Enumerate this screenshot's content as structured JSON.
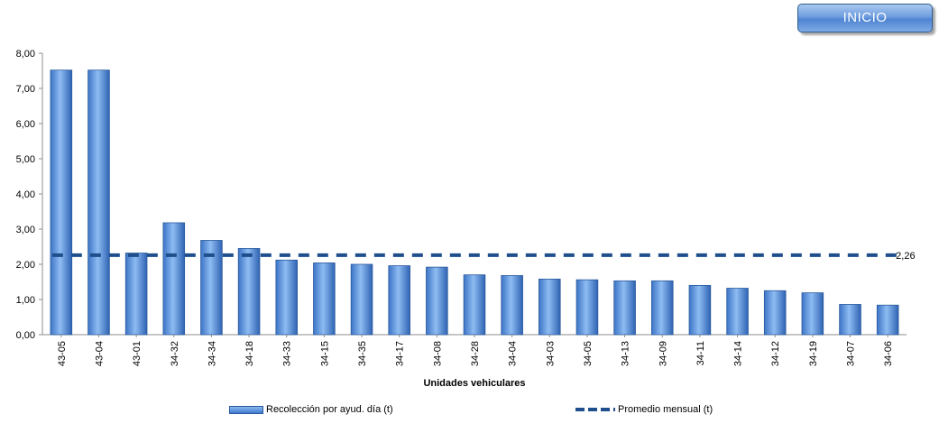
{
  "button": {
    "label": "INICIO"
  },
  "chart_data": {
    "type": "bar",
    "xlabel": "Unidades vehiculares",
    "ylabel": "",
    "ylim": [
      0,
      8
    ],
    "yticks": [
      "0,00",
      "1,00",
      "2,00",
      "3,00",
      "4,00",
      "5,00",
      "6,00",
      "7,00",
      "8,00"
    ],
    "categories": [
      "43-05",
      "43-04",
      "43-01",
      "34-32",
      "34-34",
      "34-18",
      "34-33",
      "34-15",
      "34-35",
      "34-17",
      "34-08",
      "34-28",
      "34-04",
      "34-03",
      "34-05",
      "34-13",
      "34-09",
      "34-11",
      "34-14",
      "34-12",
      "34-19",
      "34-07",
      "34-06"
    ],
    "series": [
      {
        "name": "Recolección por ayud. día (t)",
        "type": "bar",
        "color": "#4a86d8",
        "values": [
          7.52,
          7.52,
          2.32,
          3.18,
          2.68,
          2.45,
          2.12,
          2.04,
          2.0,
          1.96,
          1.92,
          1.7,
          1.68,
          1.58,
          1.56,
          1.53,
          1.53,
          1.4,
          1.32,
          1.25,
          1.19,
          0.86,
          0.84
        ]
      },
      {
        "name": "Promedio mensual (t)",
        "type": "line",
        "style": "dashed",
        "color": "#1f4e8c",
        "value": 2.26,
        "value_label": "2,26"
      }
    ],
    "legend_position": "bottom",
    "grid": false
  }
}
